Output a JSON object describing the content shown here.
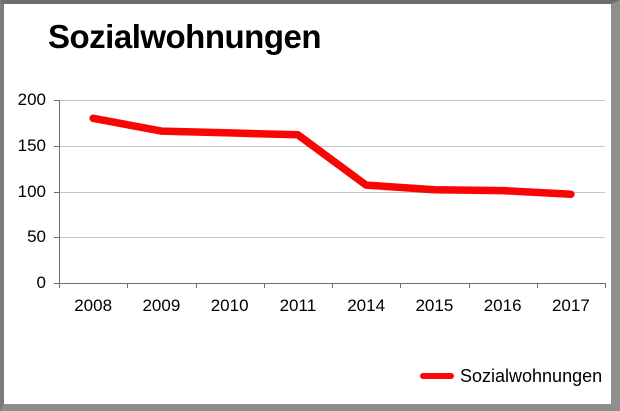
{
  "header": {
    "title": "Sozialwohnungen"
  },
  "chart_data": {
    "type": "line",
    "title": "Sozialwohnungen",
    "categories": [
      "2008",
      "2009",
      "2010",
      "2011",
      "2014",
      "2015",
      "2016",
      "2017"
    ],
    "series": [
      {
        "name": "Sozialwohnungen",
        "color": "#f80606",
        "values": [
          180,
          166,
          164,
          162,
          107,
          102,
          101,
          97
        ]
      }
    ],
    "ylim": [
      0,
      200
    ],
    "yticks": [
      0,
      50,
      100,
      150,
      200
    ],
    "grid": true,
    "legend_position": "bottom-right",
    "xlabel": "",
    "ylabel": ""
  },
  "legend": {
    "items": [
      {
        "label": "Sozialwohnungen",
        "color": "#f80606"
      }
    ]
  },
  "colors": {
    "accent_red": "#f80606",
    "gridline": "#c7c7c7",
    "axis": "#6f6f6f",
    "frame": "#7d7d7d",
    "text": "#000000",
    "background": "#ffffff"
  }
}
